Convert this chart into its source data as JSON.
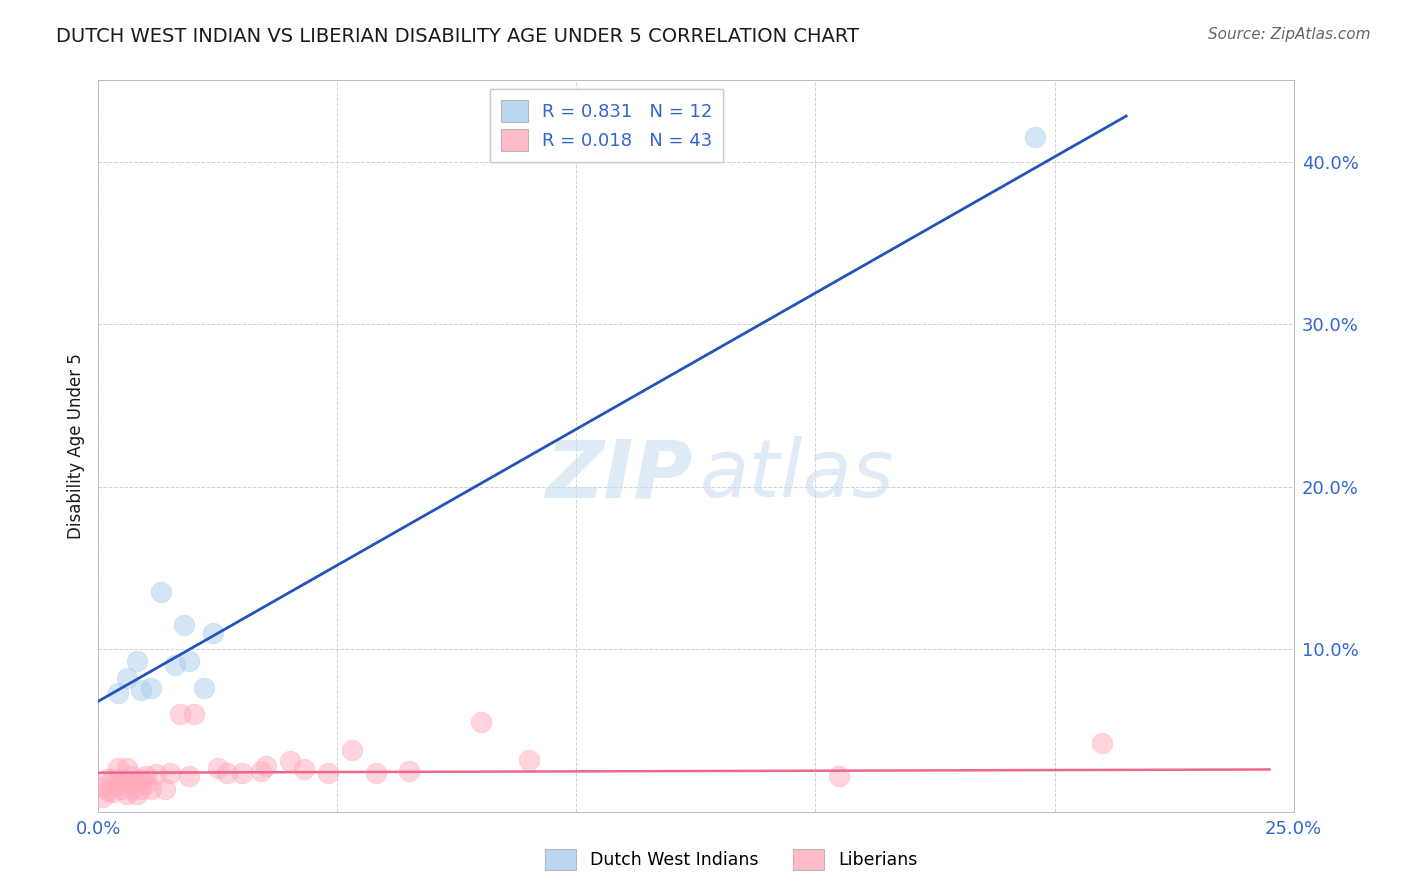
{
  "title": "DUTCH WEST INDIAN VS LIBERIAN DISABILITY AGE UNDER 5 CORRELATION CHART",
  "source": "Source: ZipAtlas.com",
  "ylabel": "Disability Age Under 5",
  "watermark_zip": "ZIP",
  "watermark_atlas": "atlas",
  "xlim": [
    0.0,
    0.25
  ],
  "ylim": [
    0.0,
    0.45
  ],
  "xticks": [
    0.0,
    0.05,
    0.1,
    0.15,
    0.2,
    0.25
  ],
  "yticks": [
    0.0,
    0.1,
    0.2,
    0.3,
    0.4
  ],
  "xtick_labels": [
    "0.0%",
    "",
    "",
    "",
    "",
    "25.0%"
  ],
  "ytick_labels": [
    "",
    "10.0%",
    "20.0%",
    "30.0%",
    "40.0%"
  ],
  "grid_color": "#cccccc",
  "blue_color": "#aaccee",
  "pink_color": "#ffaabb",
  "blue_line_color": "#2255bb",
  "pink_line_color": "#ee6688",
  "blue_R": 0.831,
  "blue_N": 12,
  "pink_R": 0.018,
  "pink_N": 43,
  "blue_x": [
    0.004,
    0.006,
    0.008,
    0.009,
    0.011,
    0.013,
    0.016,
    0.018,
    0.019,
    0.022,
    0.024,
    0.196
  ],
  "blue_y": [
    0.073,
    0.082,
    0.093,
    0.075,
    0.076,
    0.135,
    0.09,
    0.115,
    0.093,
    0.076,
    0.11,
    0.415
  ],
  "pink_x": [
    0.001,
    0.001,
    0.002,
    0.002,
    0.003,
    0.003,
    0.004,
    0.004,
    0.005,
    0.005,
    0.006,
    0.006,
    0.006,
    0.007,
    0.007,
    0.008,
    0.008,
    0.009,
    0.009,
    0.01,
    0.01,
    0.011,
    0.012,
    0.014,
    0.015,
    0.017,
    0.019,
    0.02,
    0.025,
    0.027,
    0.03,
    0.034,
    0.035,
    0.04,
    0.043,
    0.048,
    0.053,
    0.058,
    0.065,
    0.08,
    0.09,
    0.155,
    0.21
  ],
  "pink_y": [
    0.009,
    0.015,
    0.013,
    0.02,
    0.012,
    0.02,
    0.017,
    0.027,
    0.014,
    0.02,
    0.011,
    0.018,
    0.027,
    0.014,
    0.022,
    0.011,
    0.019,
    0.014,
    0.02,
    0.017,
    0.022,
    0.014,
    0.023,
    0.014,
    0.024,
    0.06,
    0.022,
    0.06,
    0.027,
    0.024,
    0.024,
    0.025,
    0.028,
    0.031,
    0.026,
    0.024,
    0.038,
    0.024,
    0.025,
    0.055,
    0.032,
    0.022,
    0.042
  ],
  "blue_line_x0": 0.0,
  "blue_line_y0": 0.068,
  "blue_line_x1": 0.215,
  "blue_line_y1": 0.428,
  "pink_line_x0": 0.0,
  "pink_line_y0": 0.024,
  "pink_line_x1": 0.245,
  "pink_line_y1": 0.026,
  "legend_dutch": "Dutch West Indians",
  "legend_liberian": "Liberians",
  "title_color": "#1a1a1a",
  "tick_color": "#3366cc",
  "source_color": "#666666",
  "bg_color": "#ffffff"
}
